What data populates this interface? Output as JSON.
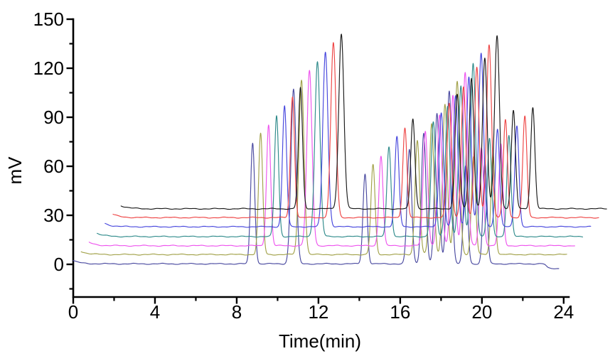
{
  "figure": {
    "kind": "chromatogram-overlay",
    "background": "#ffffff",
    "num_traces": 7
  },
  "chart_data": {
    "type": "line",
    "title": "",
    "xlabel": "Time(min)",
    "ylabel": "mV",
    "xlim": [
      0,
      24.25
    ],
    "ylim": [
      -20,
      150
    ],
    "x_major_ticks": [
      0,
      4,
      8,
      12,
      16,
      20,
      24
    ],
    "x_minor_ticks": [
      2,
      6,
      10,
      14,
      18,
      22
    ],
    "y_major_ticks": [
      0,
      30,
      60,
      90,
      120,
      150
    ],
    "y_minor_ticks": [
      -15,
      15,
      45,
      75,
      105,
      135
    ],
    "grid": false,
    "legend_position": "none",
    "axis_color": "#000000",
    "run_duration_min": 23.8,
    "start_hook_mv": 2.0,
    "peak_pattern": [
      {
        "rt": 8.78,
        "height": 74,
        "sigma": 0.1
      },
      {
        "rt": 10.78,
        "height": 107,
        "sigma": 0.125
      },
      {
        "rt": 14.28,
        "height": 55,
        "sigma": 0.1
      },
      {
        "rt": 16.45,
        "height": 70,
        "sigma": 0.11
      },
      {
        "rt": 17.15,
        "height": 80,
        "sigma": 0.11
      },
      {
        "rt": 17.8,
        "height": 92,
        "sigma": 0.112
      },
      {
        "rt": 18.4,
        "height": 106,
        "sigma": 0.12
      },
      {
        "rt": 19.2,
        "height": 60,
        "sigma": 0.1
      },
      {
        "rt": 20.15,
        "height": 62,
        "sigma": 0.1
      }
    ],
    "series": [
      {
        "name": "trace-1",
        "color_name": "navy",
        "color": "#4a4aa0",
        "t_offset": 0.0,
        "baseline_mv": 0.3,
        "end_dip_mv": -2.8,
        "end_dip_at": 23.15
      },
      {
        "name": "trace-2",
        "color_name": "dark-yellow",
        "color": "#a2a24a",
        "t_offset": 0.39,
        "baseline_mv": 6.0,
        "end_dip_mv": 0,
        "end_dip_at": null
      },
      {
        "name": "trace-3",
        "color_name": "magenta",
        "color": "#ee55ee",
        "t_offset": 0.78,
        "baseline_mv": 11.4,
        "end_dip_mv": 0,
        "end_dip_at": null
      },
      {
        "name": "trace-4",
        "color_name": "dark-cyan",
        "color": "#2f8b8b",
        "t_offset": 1.17,
        "baseline_mv": 17.0,
        "end_dip_mv": 0,
        "end_dip_at": null
      },
      {
        "name": "trace-5",
        "color_name": "blue",
        "color": "#4646dd",
        "t_offset": 1.56,
        "baseline_mv": 23.0,
        "end_dip_mv": 0,
        "end_dip_at": null
      },
      {
        "name": "trace-6",
        "color_name": "red",
        "color": "#ee4545",
        "t_offset": 1.95,
        "baseline_mv": 28.6,
        "end_dip_mv": 0,
        "end_dip_at": null
      },
      {
        "name": "trace-7",
        "color_name": "black",
        "color": "#1a1a1a",
        "t_offset": 2.34,
        "baseline_mv": 34.0,
        "end_dip_mv": 0,
        "end_dip_at": null
      }
    ]
  }
}
